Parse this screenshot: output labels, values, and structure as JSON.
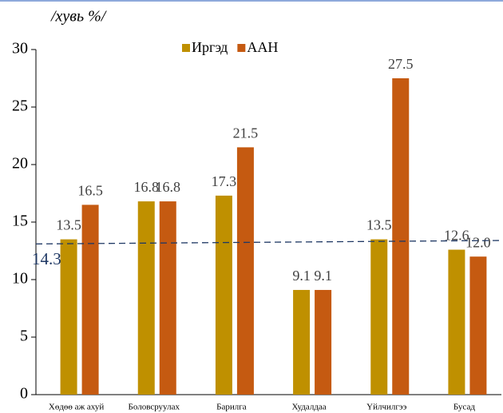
{
  "chart_data": {
    "type": "bar",
    "title": "/хувь %/",
    "categories": [
      "Хөдөө аж ахуй",
      "Боловсруулах",
      "Барилга",
      "Худалдаа",
      "Үйлчилгээ",
      "Бусад"
    ],
    "series": [
      {
        "name": "Иргэд",
        "color": "#bf9000",
        "values": [
          13.5,
          16.8,
          17.3,
          9.1,
          13.5,
          12.6
        ]
      },
      {
        "name": "ААН",
        "color": "#c55a11",
        "values": [
          16.5,
          16.8,
          21.5,
          9.1,
          27.5,
          12
        ],
        "value_labels": [
          "16.5",
          "16.8",
          "21.5",
          "9.1",
          "27.5",
          "12.0"
        ]
      }
    ],
    "ylim": [
      0,
      30
    ],
    "yticks": [
      0,
      5,
      10,
      15,
      20,
      25,
      30
    ],
    "legend": "top",
    "reference_line": {
      "label": "14.3",
      "values": [
        13.1,
        13.4
      ],
      "color": "#1f3864"
    }
  }
}
